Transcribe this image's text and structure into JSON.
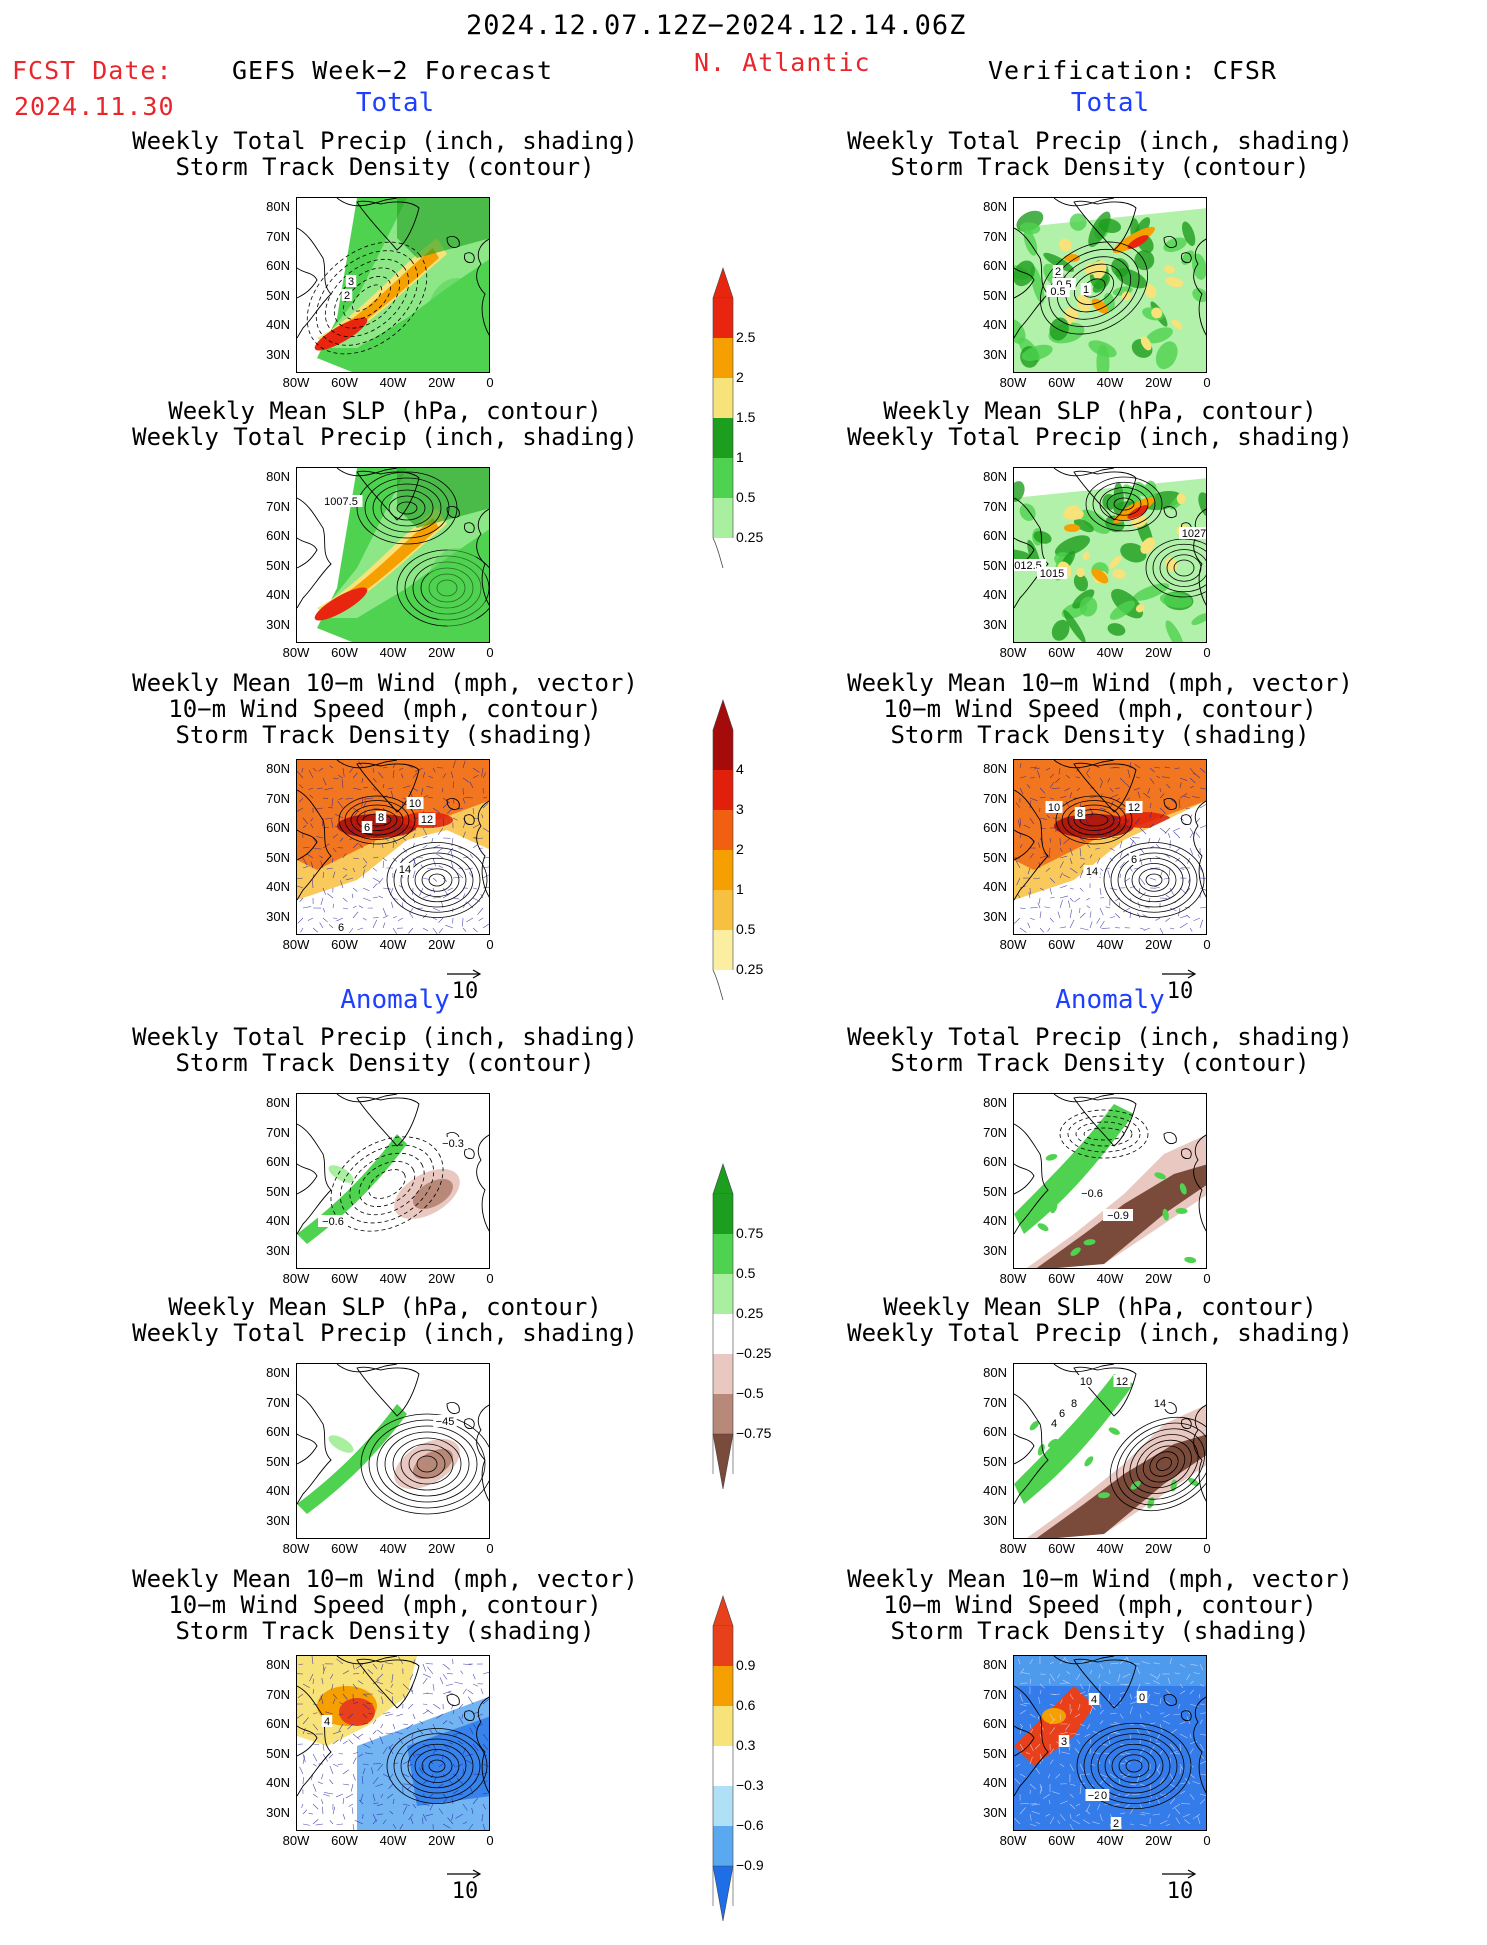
{
  "header": {
    "period": "2024.12.07.12Z−2024.12.14.06Z",
    "fcst_label": "FCST Date:",
    "fcst_date": "2024.11.30",
    "forecast_title": "GEFS Week−2 Forecast",
    "region": "N. Atlantic",
    "verification": "Verification: CFSR"
  },
  "sections": {
    "total": "Total",
    "anomaly": "Anomaly"
  },
  "titles": {
    "precip": [
      "Weekly Total Precip (inch, shading)",
      "Storm Track Density (contour)"
    ],
    "slp": [
      "Weekly Mean SLP (hPa, contour)",
      "Weekly Total Precip (inch, shading)"
    ],
    "wind": [
      "Weekly Mean 10−m Wind (mph, vector)",
      "10−m Wind Speed (mph, contour)",
      "Storm Track Density (shading)"
    ]
  },
  "axes": {
    "lat_labels": [
      "80N",
      "70N",
      "60N",
      "50N",
      "40N",
      "30N"
    ],
    "lon_labels": [
      "80W",
      "60W",
      "40W",
      "20W",
      "0"
    ]
  },
  "vector_ref": "10",
  "colorbars": {
    "precip_total": {
      "labels": [
        "2.5",
        "2",
        "1.5",
        "1",
        "0.5",
        "0.25"
      ],
      "colors": [
        "#e8260f",
        "#f5a000",
        "#f8e27a",
        "#1e9e1e",
        "#4fd24f",
        "#a8f0a0"
      ]
    },
    "storm_total": {
      "labels": [
        "4",
        "3",
        "2",
        "1",
        "0.5",
        "0.25"
      ],
      "colors": [
        "#a50b0b",
        "#e0200b",
        "#f06010",
        "#f5a000",
        "#f8c040",
        "#fbeea0"
      ]
    },
    "precip_anom": {
      "labels": [
        "0.75",
        "0.5",
        "0.25",
        "−0.25",
        "−0.5",
        "−0.75"
      ],
      "colors": [
        "#1e9e1e",
        "#4fd24f",
        "#a8f0a0",
        "#ffffff",
        "#e8c8c0",
        "#b88878",
        "#7a4a3a"
      ]
    },
    "storm_anom": {
      "labels": [
        "0.9",
        "0.6",
        "0.3",
        "−0.3",
        "−0.6",
        "−0.9"
      ],
      "colors": [
        "#e8401a",
        "#f5a000",
        "#f8e27a",
        "#ffffff",
        "#b0e0f5",
        "#5aa8f0",
        "#1e6ee8"
      ]
    }
  },
  "map_labels": {
    "gefs_precip_total": [
      "3",
      "2"
    ],
    "cfsr_precip_total": [
      "2",
      "0.5",
      "0.5",
      "1"
    ],
    "gefs_slp_total": [
      "1007.5"
    ],
    "cfsr_slp_total": [
      "1027",
      "012.5",
      "1015"
    ],
    "gefs_wind_total": [
      "10",
      "8",
      "6",
      "12",
      "14",
      "6"
    ],
    "cfsr_wind_total": [
      "10",
      "8",
      "12",
      "14",
      "6"
    ],
    "gefs_precip_anom": [
      "−0.3",
      "−0.6"
    ],
    "cfsr_precip_anom": [
      "−0.6",
      "−0.9"
    ],
    "gefs_slp_anom": [
      "−45"
    ],
    "cfsr_slp_anom": [
      "10",
      "12",
      "8",
      "6",
      "4",
      "14"
    ],
    "gefs_wind_anom": [
      "4"
    ],
    "cfsr_wind_anom": [
      "4",
      "0",
      "3",
      "−2",
      "0",
      "2"
    ]
  },
  "colors": {
    "header_red": "#e8262b",
    "section_blue": "#1f3fff"
  }
}
